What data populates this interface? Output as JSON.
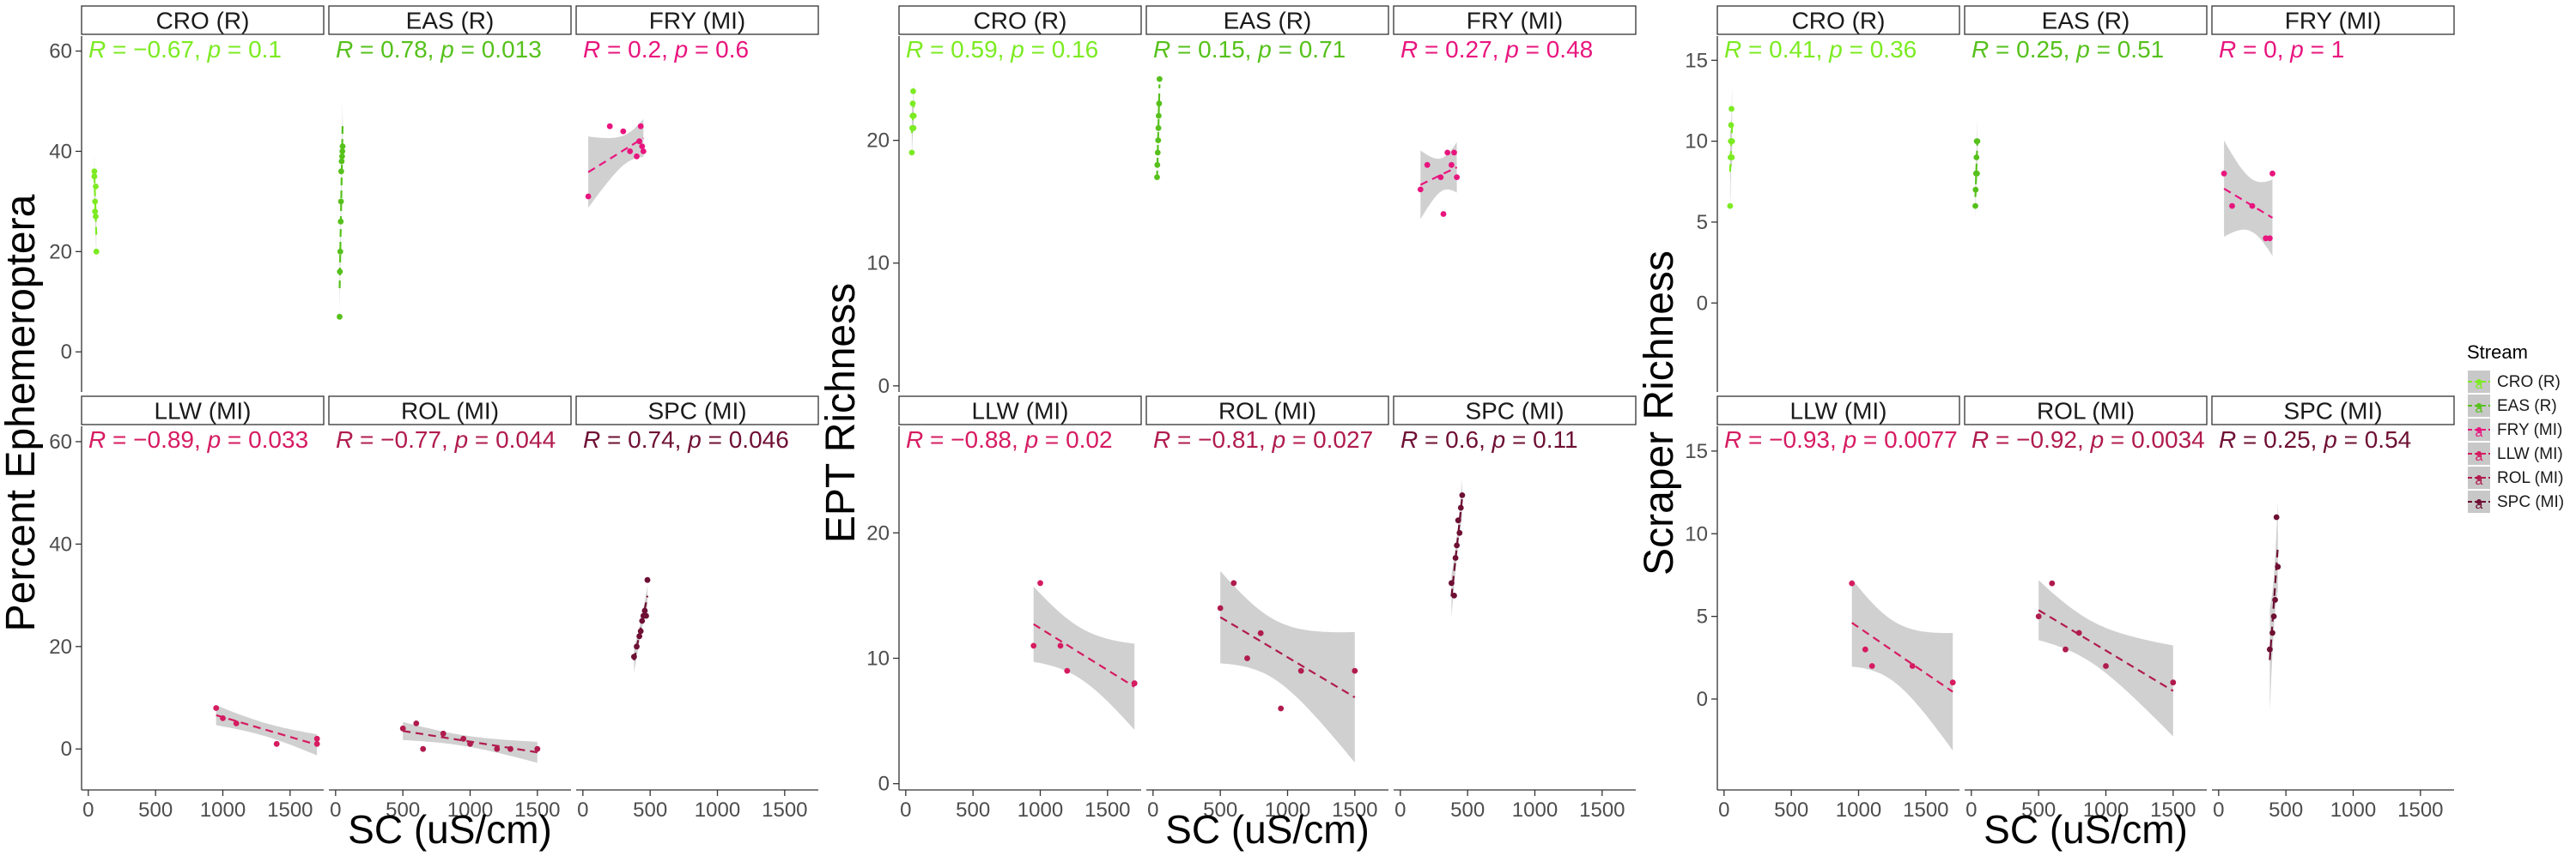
{
  "colors": {
    "CRO (R)": "#7CEB22",
    "EAS (R)": "#56C11C",
    "FRY (MI)": "#E8157E",
    "LLW (MI)": "#D61B61",
    "ROL (MI)": "#B01B4E",
    "SPC (MI)": "#6E0F33",
    "band": "#C8C8C8",
    "strip_fill": "#FFFFFF",
    "strip_border": "#333333"
  },
  "legend": {
    "title": "Stream",
    "items": [
      "CRO (R)",
      "EAS (R)",
      "FRY (MI)",
      "LLW (MI)",
      "ROL (MI)",
      "SPC (MI)"
    ],
    "key_glyph": "a"
  },
  "chart_data": [
    {
      "type": "scatter",
      "ylabel": "Percent Ephemeroptera",
      "xlabel": "SC (uS/cm)",
      "xlim": [
        -50,
        1750
      ],
      "ylim": [
        -8,
        63
      ],
      "xticks": [
        "0",
        "500",
        "1000",
        "1500"
      ],
      "yticks": [
        "0",
        "20",
        "40",
        "60"
      ],
      "panels": [
        {
          "stream": "CRO (R)",
          "stat": {
            "r": "−0.67",
            "p": "0.1"
          },
          "x": [
            45,
            45,
            50,
            50,
            55,
            55,
            60
          ],
          "y": [
            36,
            35,
            30,
            28,
            27,
            33,
            20
          ]
        },
        {
          "stream": "EAS (R)",
          "stat": {
            "r": "0.78",
            "p": "0.013"
          },
          "x": [
            30,
            32,
            35,
            38,
            40,
            42,
            45,
            48,
            50,
            52
          ],
          "y": [
            7,
            16,
            20,
            26,
            30,
            36,
            38,
            39,
            40,
            41
          ]
        },
        {
          "stream": "FRY (MI)",
          "stat": {
            "r": "0.2",
            "p": "0.6"
          },
          "x": [
            40,
            200,
            300,
            350,
            400,
            420,
            430,
            440,
            450
          ],
          "y": [
            31,
            45,
            44,
            40,
            39,
            42,
            45,
            41,
            40
          ]
        },
        {
          "stream": "LLW (MI)",
          "stat": {
            "r": "−0.89",
            "p": "0.033"
          },
          "x": [
            950,
            1000,
            1100,
            1400,
            1700,
            1700
          ],
          "y": [
            8,
            6,
            5,
            1,
            1,
            2
          ]
        },
        {
          "stream": "ROL (MI)",
          "stat": {
            "r": "−0.77",
            "p": "0.044"
          },
          "x": [
            500,
            600,
            650,
            800,
            950,
            1000,
            1200,
            1300,
            1500
          ],
          "y": [
            4,
            5,
            0,
            3,
            2,
            1,
            0,
            0,
            0
          ]
        },
        {
          "stream": "SPC (MI)",
          "stat": {
            "r": "0.74",
            "p": "0.046"
          },
          "x": [
            380,
            400,
            420,
            430,
            440,
            450,
            460,
            470,
            480
          ],
          "y": [
            18,
            20,
            22,
            23,
            25,
            26,
            27,
            26,
            33
          ]
        }
      ]
    },
    {
      "type": "scatter",
      "ylabel": "EPT Richness",
      "xlabel": "SC (uS/cm)",
      "xlim": [
        -50,
        1750
      ],
      "ylim": [
        -0.5,
        28.5
      ],
      "xticks": [
        "0",
        "500",
        "1000",
        "1500"
      ],
      "yticks": [
        "0",
        "10",
        "20"
      ],
      "panels": [
        {
          "stream": "CRO (R)",
          "stat": {
            "r": "0.59",
            "p": "0.16"
          },
          "x": [
            45,
            48,
            50,
            52,
            55,
            58,
            60
          ],
          "y": [
            19,
            21,
            22,
            23,
            24,
            21,
            22
          ]
        },
        {
          "stream": "EAS (R)",
          "stat": {
            "r": "0.15",
            "p": "0.71"
          },
          "x": [
            30,
            32,
            35,
            38,
            40,
            42,
            45,
            48
          ],
          "y": [
            17,
            18,
            19,
            20,
            21,
            22,
            23,
            25
          ]
        },
        {
          "stream": "FRY (MI)",
          "stat": {
            "r": "0.27",
            "p": "0.48"
          },
          "x": [
            150,
            200,
            300,
            320,
            350,
            380,
            400,
            420
          ],
          "y": [
            16,
            18,
            17,
            14,
            19,
            18,
            19,
            17
          ]
        },
        {
          "stream": "LLW (MI)",
          "stat": {
            "r": "−0.88",
            "p": "0.02"
          },
          "x": [
            950,
            1000,
            1150,
            1200,
            1700,
            1700
          ],
          "y": [
            11,
            16,
            11,
            9,
            8,
            8
          ]
        },
        {
          "stream": "ROL (MI)",
          "stat": {
            "r": "−0.81",
            "p": "0.027"
          },
          "x": [
            500,
            600,
            700,
            800,
            950,
            1100,
            1500
          ],
          "y": [
            14,
            16,
            10,
            12,
            6,
            9,
            9
          ]
        },
        {
          "stream": "SPC (MI)",
          "stat": {
            "r": "0.6",
            "p": "0.11"
          },
          "x": [
            380,
            400,
            410,
            420,
            430,
            440,
            450,
            460
          ],
          "y": [
            16,
            15,
            18,
            19,
            21,
            20,
            22,
            23
          ]
        }
      ]
    },
    {
      "type": "scatter",
      "ylabel": "Scraper Richness",
      "xlabel": "SC (uS/cm)",
      "xlim": [
        -50,
        1750
      ],
      "ylim": [
        -5.5,
        16.5
      ],
      "xticks": [
        "0",
        "500",
        "1000",
        "1500"
      ],
      "yticks": [
        "0",
        "5",
        "10",
        "15"
      ],
      "panels": [
        {
          "stream": "CRO (R)",
          "stat": {
            "r": "0.41",
            "p": "0.36"
          },
          "x": [
            45,
            48,
            50,
            52,
            55,
            58,
            60
          ],
          "y": [
            6,
            9,
            10,
            11,
            12,
            9,
            10
          ]
        },
        {
          "stream": "EAS (R)",
          "stat": {
            "r": "0.25",
            "p": "0.51"
          },
          "x": [
            30,
            32,
            35,
            38,
            40,
            42,
            45
          ],
          "y": [
            6,
            7,
            8,
            9,
            10,
            8,
            10
          ]
        },
        {
          "stream": "FRY (MI)",
          "stat": {
            "r": "0",
            "p": "1"
          },
          "x": [
            40,
            100,
            250,
            350,
            380,
            400
          ],
          "y": [
            8,
            6,
            6,
            4,
            4,
            8
          ]
        },
        {
          "stream": "LLW (MI)",
          "stat": {
            "r": "−0.93",
            "p": "0.0077"
          },
          "x": [
            950,
            1050,
            1100,
            1400,
            1700
          ],
          "y": [
            7,
            3,
            2,
            2,
            1
          ]
        },
        {
          "stream": "ROL (MI)",
          "stat": {
            "r": "−0.92",
            "p": "0.0034"
          },
          "x": [
            500,
            600,
            700,
            800,
            1000,
            1500
          ],
          "y": [
            5,
            7,
            3,
            4,
            2,
            1
          ]
        },
        {
          "stream": "SPC (MI)",
          "stat": {
            "r": "0.25",
            "p": "0.54"
          },
          "x": [
            380,
            400,
            410,
            420,
            430,
            440
          ],
          "y": [
            3,
            4,
            5,
            6,
            11,
            8
          ]
        }
      ]
    }
  ]
}
